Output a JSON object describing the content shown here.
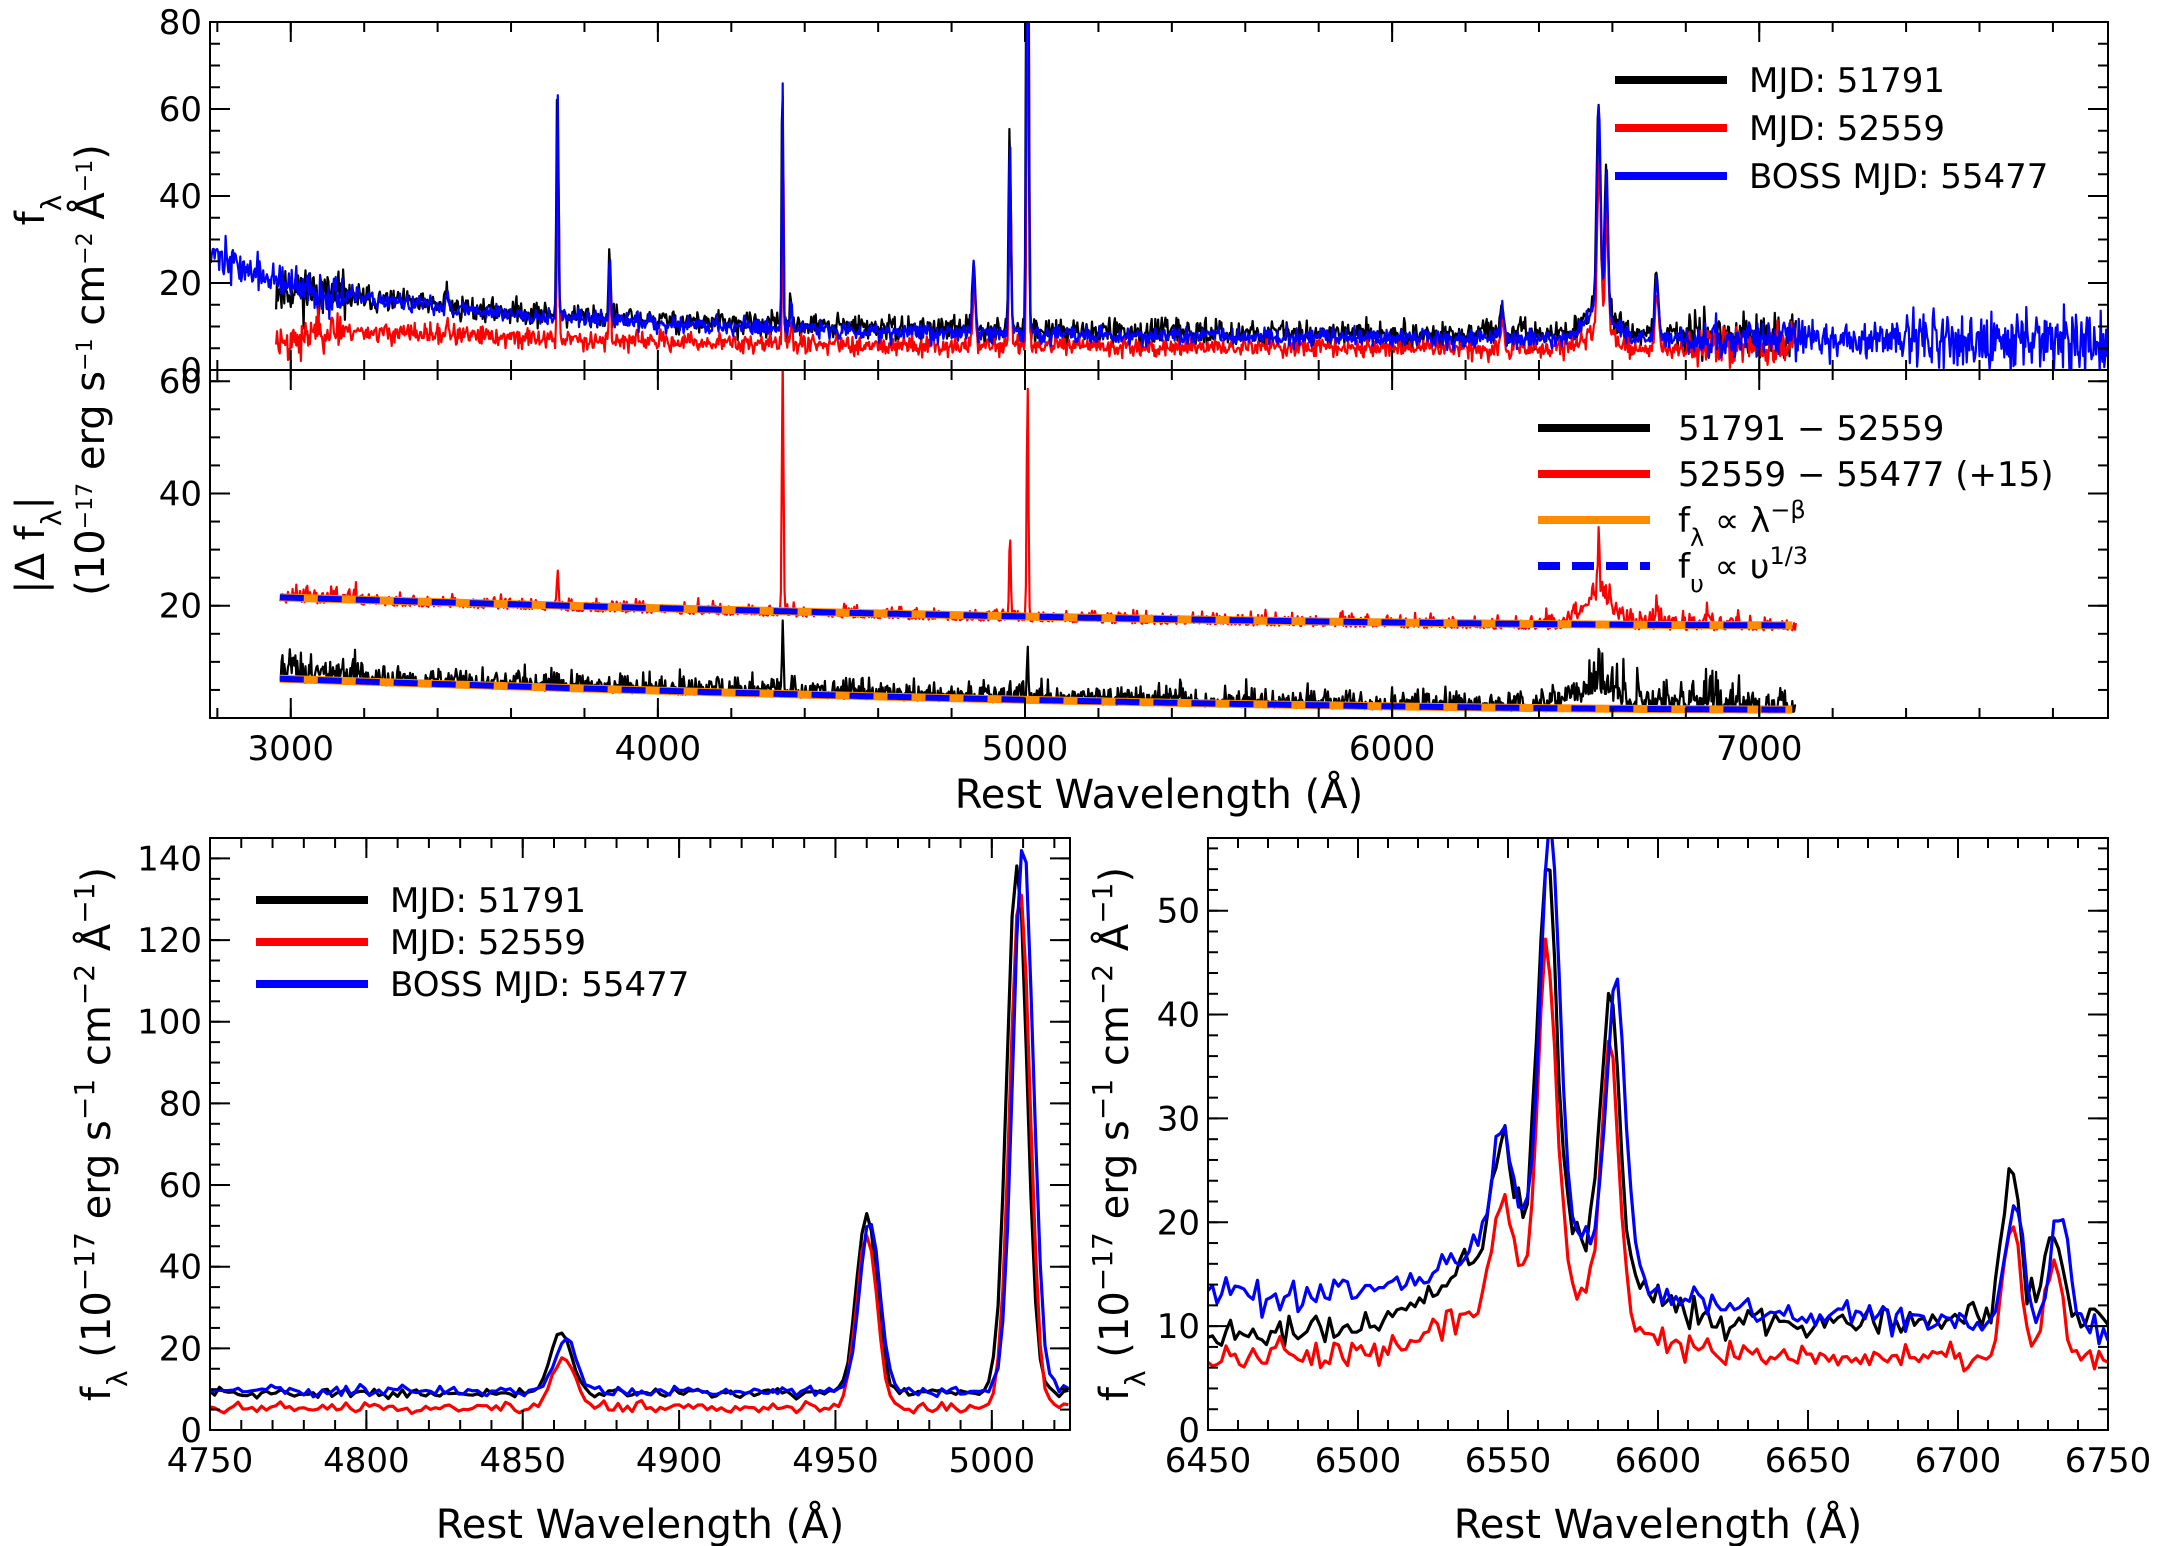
{
  "figure": {
    "shared_y_label": "f_λ  (10^−17 erg s^−1 cm^−2 Å^−1)",
    "top_xlabel": "Rest Wavelength (Å)"
  },
  "chart_data": [
    {
      "id": "spectra-epochs",
      "type": "line",
      "ylabel": "f_λ",
      "xlim": [
        2780,
        7950
      ],
      "ylim": [
        0,
        80
      ],
      "yticks": [
        0,
        20,
        40,
        60,
        80
      ],
      "xticks": [
        3000,
        4000,
        5000,
        6000,
        7000
      ],
      "legend": "top-right",
      "series": [
        {
          "name": "MJD: 51791",
          "color": "#000000",
          "x_range": [
            2960,
            7100
          ],
          "continuum": {
            "a": 11,
            "b": 8
          },
          "noise": 2.0
        },
        {
          "name": "MJD: 52559",
          "color": "#ff0000",
          "x_range": [
            2960,
            7100
          ],
          "continuum": {
            "a": 5,
            "b": 5
          },
          "noise": 1.6
        },
        {
          "name": "BOSS MJD: 55477",
          "color": "#0000ff",
          "x_range": [
            2780,
            7950
          ],
          "continuum": {
            "a": 15,
            "b": 7
          },
          "noise": 1.5
        }
      ],
      "lines": [
        {
          "x": 3426,
          "peak": 4,
          "width": 4
        },
        {
          "x": 3727,
          "peak": 53,
          "width": 2.5
        },
        {
          "x": 3869,
          "peak": 15,
          "width": 2.5
        },
        {
          "x": 4340,
          "peak": 57,
          "width": 2
        },
        {
          "x": 4363,
          "peak": 6,
          "width": 3
        },
        {
          "x": 4861,
          "peak": 16,
          "width": 4
        },
        {
          "x": 4959,
          "peak": 45,
          "width": 3
        },
        {
          "x": 5007,
          "peak": 130,
          "width": 3
        },
        {
          "x": 6300,
          "peak": 8,
          "width": 4
        },
        {
          "x": 6563,
          "peak": 45,
          "width": 5
        },
        {
          "x": 6584,
          "peak": 32,
          "width": 4
        },
        {
          "x": 6720,
          "peak": 14,
          "width": 5
        }
      ]
    },
    {
      "id": "difference-spectra",
      "type": "line",
      "ylabel": "|Δ f_λ|",
      "xlabel": "Rest Wavelength (Å)",
      "xlim": [
        2780,
        7950
      ],
      "ylim": [
        0,
        62
      ],
      "yticks": [
        20,
        40,
        60
      ],
      "xticks": [
        3000,
        4000,
        5000,
        6000,
        7000
      ],
      "legend": "top-right",
      "series": [
        {
          "name": "51791 − 52559",
          "color": "#000000",
          "fit_start": 7,
          "fit_end": 1.5,
          "noise": 2.0,
          "x_range": [
            2970,
            7100
          ]
        },
        {
          "name": "52559 − 55477 (+15)",
          "color": "#ff0000",
          "fit_start": 21.5,
          "fit_end": 16.5,
          "noise": 1.6,
          "x_range": [
            2970,
            7100
          ]
        },
        {
          "name": "f_λ ∝ λ^−β",
          "color": "#ff8c00",
          "style": "solid"
        },
        {
          "name": "f_υ ∝ υ^1/3",
          "color": "#0000ff",
          "style": "dashed"
        }
      ]
    },
    {
      "id": "hbeta-oiii-zoom",
      "type": "line",
      "ylabel": "f_λ (10^−17 erg s^−1 cm^−2 Å^−1)",
      "xlabel": "Rest Wavelength (Å)",
      "xlim": [
        4750,
        5025
      ],
      "ylim": [
        0,
        145
      ],
      "xticks": [
        4750,
        4800,
        4850,
        4900,
        4950,
        5000
      ],
      "yticks": [
        0,
        20,
        40,
        60,
        80,
        100,
        120,
        140
      ],
      "legend": "top-left",
      "series": [
        {
          "name": "MJD: 51791",
          "color": "#000000",
          "base": 9,
          "lines": [
            {
              "x": 4862,
              "peak": 15,
              "w": 3.5
            },
            {
              "x": 4960,
              "peak": 44,
              "w": 3.2
            },
            {
              "x": 5008,
              "peak": 130,
              "w": 3.2
            }
          ]
        },
        {
          "name": "MJD: 52559",
          "color": "#ff0000",
          "base": 5.5,
          "lines": [
            {
              "x": 4863,
              "peak": 13,
              "w": 3.5
            },
            {
              "x": 4960,
              "peak": 43,
              "w": 3.2
            },
            {
              "x": 5009,
              "peak": 127,
              "w": 3.2
            }
          ]
        },
        {
          "name": "BOSS MJD: 55477",
          "color": "#0000ff",
          "base": 9.5,
          "lines": [
            {
              "x": 4864,
              "peak": 13,
              "w": 3.5
            },
            {
              "x": 4961,
              "peak": 42,
              "w": 3.2
            },
            {
              "x": 5010,
              "peak": 135,
              "w": 3.2
            }
          ]
        }
      ]
    },
    {
      "id": "halpha-zoom",
      "type": "line",
      "ylabel": "f_λ (10^−17 erg s^−1 cm^−2 Å^−1)",
      "xlabel": "Rest Wavelength (Å)",
      "xlim": [
        6450,
        6750
      ],
      "ylim": [
        0,
        57
      ],
      "xticks": [
        6450,
        6500,
        6550,
        6600,
        6650,
        6700,
        6750
      ],
      "yticks": [
        0,
        10,
        20,
        30,
        40,
        50
      ],
      "series": [
        {
          "name": "MJD: 51791",
          "color": "#000000",
          "base": [
            9,
            11
          ],
          "broad": 10,
          "lines": [
            {
              "x": 6548,
              "peak": 10,
              "w": 3
            },
            {
              "x": 6563,
              "peak": 36,
              "w": 3
            },
            {
              "x": 6584,
              "peak": 26,
              "w": 3
            },
            {
              "x": 6718,
              "peak": 14,
              "w": 3
            },
            {
              "x": 6732,
              "peak": 8,
              "w": 3
            }
          ]
        },
        {
          "name": "MJD: 52559",
          "color": "#ff0000",
          "base": [
            7,
            7
          ],
          "broad": 7,
          "lines": [
            {
              "x": 6548,
              "peak": 9,
              "w": 3
            },
            {
              "x": 6563,
              "peak": 33,
              "w": 3
            },
            {
              "x": 6584,
              "peak": 25,
              "w": 3
            },
            {
              "x": 6718,
              "peak": 13,
              "w": 3
            },
            {
              "x": 6732,
              "peak": 9,
              "w": 3
            }
          ]
        },
        {
          "name": "BOSS MJD: 55477",
          "color": "#0000ff",
          "base": [
            13,
            10
          ],
          "broad": 8,
          "lines": [
            {
              "x": 6548,
              "peak": 10,
              "w": 3
            },
            {
              "x": 6564,
              "peak": 40,
              "w": 3
            },
            {
              "x": 6586,
              "peak": 27,
              "w": 3
            },
            {
              "x": 6719,
              "peak": 12,
              "w": 3
            },
            {
              "x": 6734,
              "peak": 11,
              "w": 3
            }
          ]
        }
      ]
    }
  ]
}
